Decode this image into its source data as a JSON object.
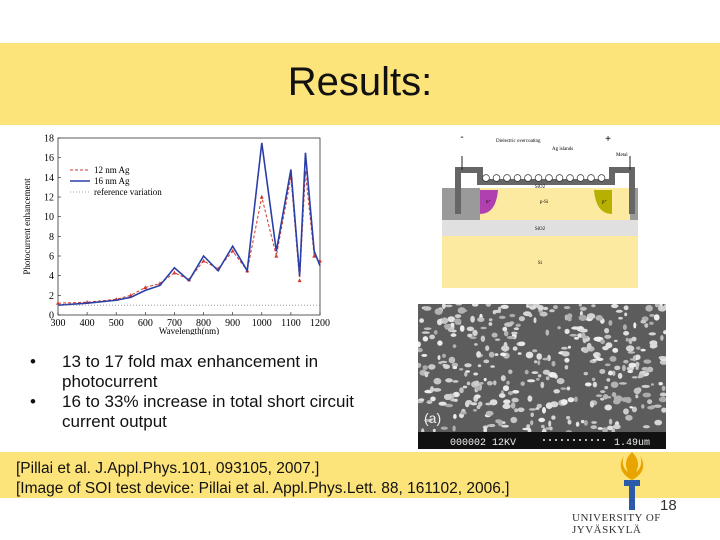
{
  "slide": {
    "title": "Results:",
    "bullets": [
      "13 to 17 fold max enhancement in photocurrent",
      "16 to 33% increase in total short circuit current output"
    ],
    "citations": [
      "[Pillai et al. J.Appl.Phys.101, 093105, 2007.]",
      "[Image of SOI test device: Pillai et al. Appl.Phys.Lett. 88, 161102, 2006.]"
    ],
    "page_number": "18",
    "university": "UNIVERSITY OF JYVÄSKYLÄ"
  },
  "colors": {
    "band": "#fde47a",
    "series_red": "#d03a2a",
    "series_blue": "#2a3fa8"
  },
  "chart_data": {
    "type": "line",
    "xlabel": "Wavelength(nm)",
    "ylabel": "Photocurrent enhancement",
    "xlim": [
      300,
      1200
    ],
    "ylim": [
      0,
      18
    ],
    "x_ticks": [
      "300",
      "400",
      "500",
      "600",
      "700",
      "800",
      "900",
      "1000",
      "1100",
      "1200"
    ],
    "y_ticks": [
      "0",
      "2",
      "4",
      "6",
      "8",
      "10",
      "12",
      "14",
      "16",
      "18"
    ],
    "legend_position": "top-left",
    "series": [
      {
        "name": "12 nm Ag",
        "style": "red-dashed-triangles",
        "x": [
          300,
          400,
          500,
          550,
          600,
          650,
          700,
          750,
          800,
          850,
          900,
          950,
          1000,
          1050,
          1100,
          1130,
          1150,
          1180,
          1200
        ],
        "y": [
          1.2,
          1.3,
          1.6,
          2.0,
          2.8,
          3.2,
          4.3,
          3.6,
          5.5,
          4.7,
          6.5,
          4.5,
          12.0,
          6.0,
          14.0,
          3.5,
          14.5,
          6.0,
          5.5
        ]
      },
      {
        "name": "16 nm Ag",
        "style": "blue-solid",
        "x": [
          300,
          400,
          500,
          550,
          600,
          650,
          700,
          750,
          800,
          850,
          900,
          950,
          1000,
          1050,
          1100,
          1130,
          1150,
          1180,
          1200
        ],
        "y": [
          1.0,
          1.2,
          1.5,
          1.8,
          2.5,
          3.0,
          4.8,
          3.5,
          6.0,
          4.5,
          7.0,
          4.5,
          17.5,
          6.5,
          14.8,
          4.0,
          16.5,
          6.5,
          5.0
        ]
      },
      {
        "name": "reference variation",
        "style": "gray-dotted",
        "x": [
          300,
          400,
          500,
          600,
          700,
          800,
          900,
          1000,
          1100,
          1200
        ],
        "y": [
          1.0,
          1.0,
          1.0,
          1.0,
          1.0,
          1.0,
          1.0,
          1.0,
          1.0,
          1.0
        ]
      }
    ]
  },
  "device_diagram": {
    "top_left_sign": "-",
    "top_right_sign": "+",
    "labels": [
      "Dielectric overcoating",
      "Ag islands",
      "Metal",
      "SiO2",
      "n⁺",
      "p-Si",
      "p⁺",
      "SiO2",
      "Si"
    ]
  },
  "sem_image": {
    "label": "(a)",
    "scalebar_text": "000002  12KV",
    "scale_value": "1.49um"
  }
}
